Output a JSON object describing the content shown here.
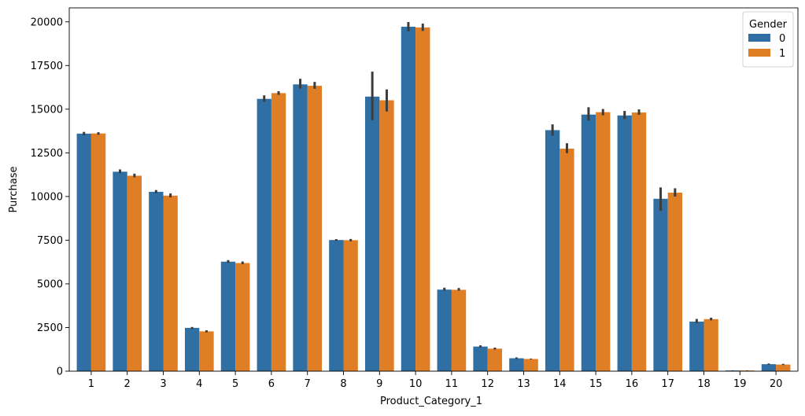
{
  "chart_data": {
    "type": "bar",
    "xlabel": "Product_Category_1",
    "ylabel": "Purchase",
    "ylim": [
      0,
      20800
    ],
    "yticks": [
      0,
      2500,
      5000,
      7500,
      10000,
      12500,
      15000,
      17500,
      20000
    ],
    "categories": [
      "1",
      "2",
      "3",
      "4",
      "5",
      "6",
      "7",
      "8",
      "9",
      "10",
      "11",
      "12",
      "13",
      "14",
      "15",
      "16",
      "17",
      "18",
      "19",
      "20"
    ],
    "legend": {
      "title": "Gender",
      "placement": "top-right"
    },
    "series": [
      {
        "name": "0",
        "color": "#2f6fa3",
        "values": [
          13600,
          11420,
          10270,
          2480,
          6270,
          15590,
          16420,
          7510,
          15720,
          19720,
          4670,
          1410,
          740,
          13800,
          14690,
          14640,
          9870,
          2840,
          40,
          400
        ],
        "err_low": [
          13500,
          11330,
          10190,
          2410,
          6200,
          15430,
          16180,
          7460,
          14370,
          19460,
          4610,
          1360,
          700,
          13480,
          14350,
          14440,
          9180,
          2760,
          30,
          370
        ],
        "err_high": [
          13700,
          11550,
          10370,
          2530,
          6360,
          15790,
          16740,
          7560,
          17150,
          19990,
          4780,
          1480,
          790,
          14130,
          15110,
          14900,
          10520,
          2990,
          50,
          440
        ]
      },
      {
        "name": "1",
        "color": "#e07e26",
        "values": [
          13610,
          11190,
          10050,
          2280,
          6190,
          15920,
          16340,
          7500,
          15510,
          19680,
          4660,
          1290,
          700,
          12740,
          14830,
          14810,
          10220,
          2980,
          40,
          380
        ],
        "err_low": [
          13540,
          11100,
          9950,
          2220,
          6130,
          15820,
          16170,
          7440,
          14870,
          19480,
          4610,
          1240,
          680,
          12480,
          14650,
          14680,
          10000,
          2910,
          30,
          350
        ],
        "err_high": [
          13680,
          11310,
          10180,
          2340,
          6280,
          16030,
          16560,
          7570,
          16130,
          19900,
          4760,
          1350,
          720,
          13050,
          15010,
          14990,
          10470,
          3060,
          50,
          420
        ]
      }
    ]
  }
}
